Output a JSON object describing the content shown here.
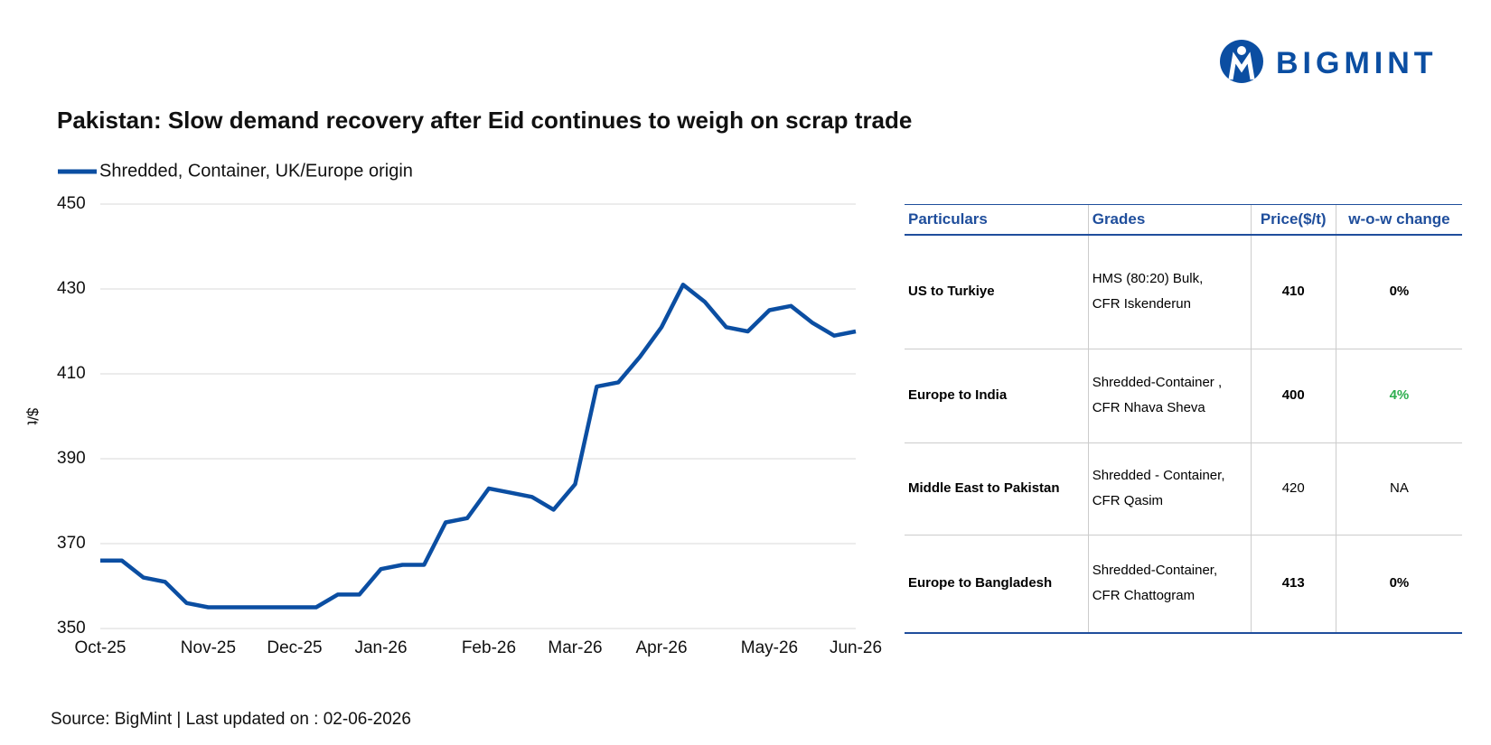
{
  "logo": "BIGMINT",
  "chart_data": {
    "type": "line",
    "title": "Pakistan: Slow demand recovery after Eid continues to weigh on scrap trade",
    "y_label": "$/t",
    "categories": [
      "Oct-25",
      null,
      null,
      null,
      null,
      "Nov-25",
      null,
      null,
      null,
      "Dec-25",
      null,
      null,
      null,
      "Jan-26",
      null,
      null,
      null,
      null,
      "Feb-26",
      null,
      null,
      null,
      "Mar-26",
      null,
      null,
      null,
      "Apr-26",
      null,
      null,
      null,
      null,
      "May-26",
      null,
      null,
      null,
      "Jun-26"
    ],
    "series": [
      {
        "name": "Shredded, Container, UK/Europe origin",
        "color": "#0b4ea2",
        "values": [
          366,
          366,
          362,
          361,
          356,
          355,
          355,
          355,
          355,
          355,
          355,
          358,
          358,
          364,
          365,
          365,
          375,
          376,
          383,
          382,
          381,
          378,
          384,
          407,
          408,
          414,
          421,
          431,
          427,
          421,
          420,
          425,
          426,
          422,
          419,
          420
        ]
      }
    ],
    "ylim": [
      350,
      450
    ],
    "yticks": [
      350,
      370,
      390,
      410,
      430,
      450
    ],
    "grid": true
  },
  "table": {
    "header": [
      "Particulars",
      "Grades",
      "Price($/t)",
      "w-o-w change"
    ],
    "rows": [
      [
        "US to Turkiye",
        "HMS (80:20) Bulk,\nCFR Iskenderun",
        "410",
        "0%"
      ],
      [
        "Europe to India",
        "Shredded-Container ,\nCFR Nhava Sheva",
        "400",
        "4%"
      ],
      [
        "Middle East to Pakistan",
        "Shredded - Container,\nCFR Qasim",
        "420",
        "NA"
      ],
      [
        "Europe to Bangladesh",
        "Shredded-Container,\nCFR Chattogram",
        "413",
        "0%"
      ]
    ]
  },
  "source": "Source: BigMint | Last updated on : 02-06-2026"
}
